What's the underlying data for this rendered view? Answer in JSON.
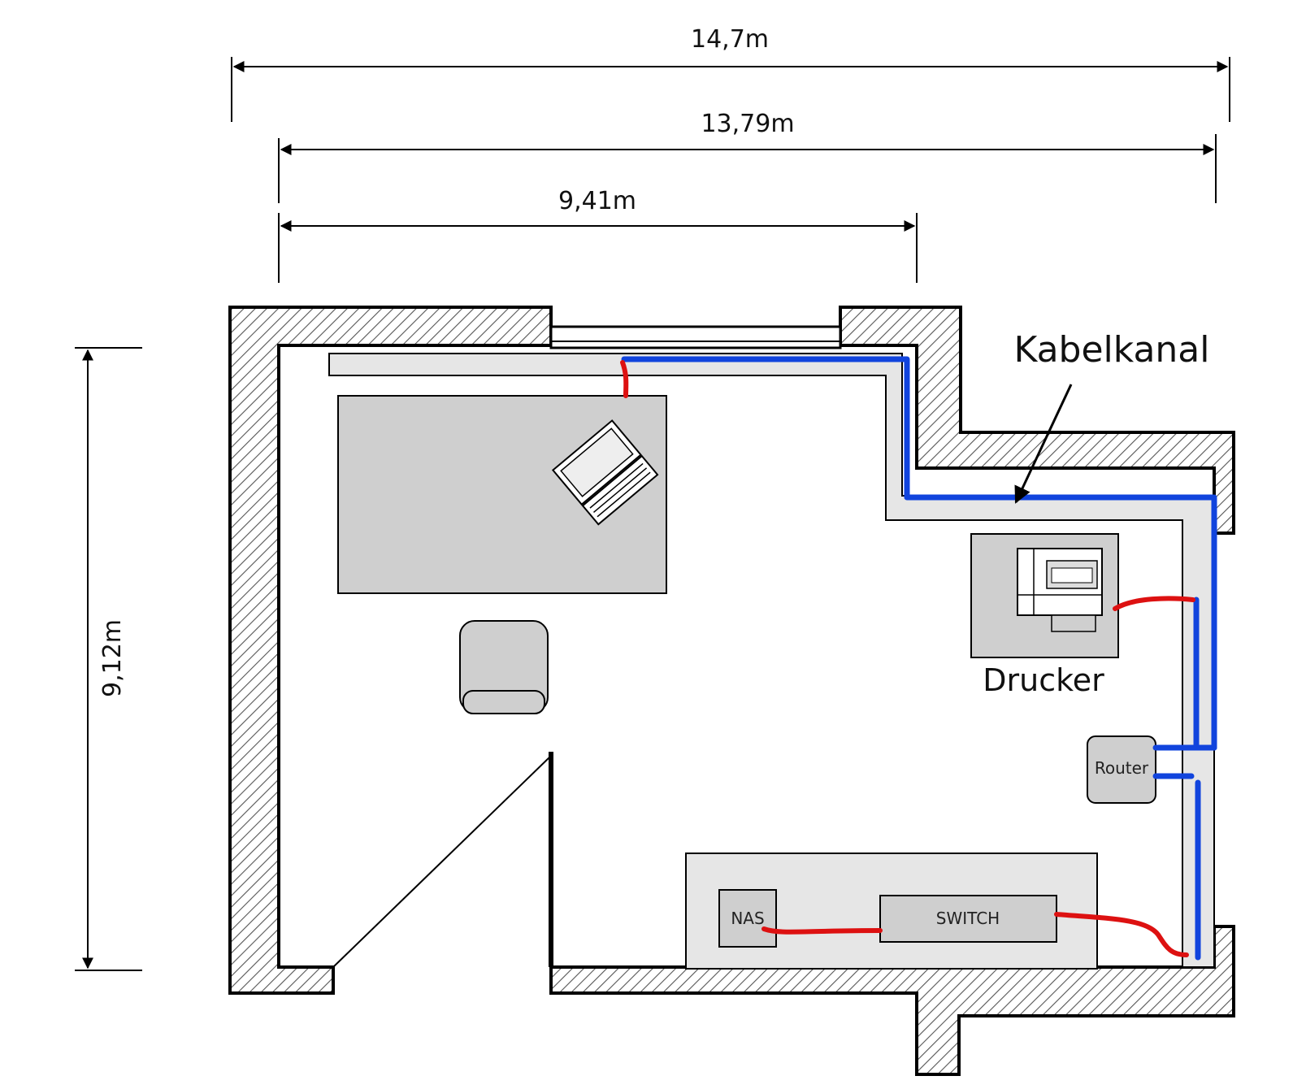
{
  "dimensions": {
    "total_width": "14,7m",
    "inner_width": "13,79m",
    "section_width": "9,41m",
    "height": "9,12m"
  },
  "labels": {
    "cable_channel": "Kabelkanal",
    "printer": "Drucker",
    "router": "Router",
    "nas": "NAS",
    "switch": "SWITCH"
  },
  "colors": {
    "wall_hatch": "#555555",
    "furniture": "#cfcfcf",
    "cable_channel": "#e6e6e6",
    "network_cable": "#1144dd",
    "patch_cable": "#dd1111"
  }
}
